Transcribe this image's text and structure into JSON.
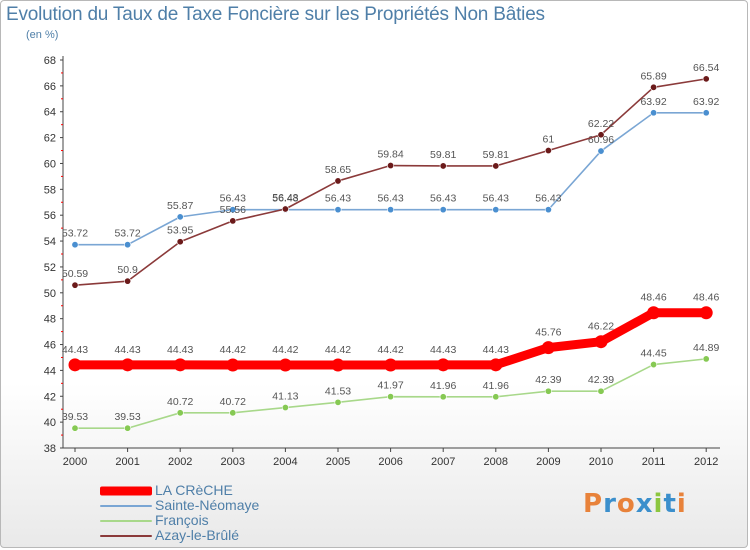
{
  "title": "Evolution du Taux de Taxe Foncière sur les Propriétés Non Bâties",
  "subtitle": "(en %)",
  "brand": {
    "letters": [
      {
        "ch": "P",
        "color": "#e8823a"
      },
      {
        "ch": "r",
        "color": "#3b8fcc"
      },
      {
        "ch": "o",
        "color": "#e8823a"
      },
      {
        "ch": "x",
        "color": "#3b8fcc"
      },
      {
        "ch": "i",
        "color": "#8cc63f"
      },
      {
        "ch": "t",
        "color": "#3b8fcc"
      },
      {
        "ch": "i",
        "color": "#e8823a"
      }
    ]
  },
  "chart_data": {
    "type": "line",
    "title": "Evolution du Taux de Taxe Foncière sur les Propriétés Non Bâties",
    "subtitle": "(en %)",
    "xlabel": "",
    "ylabel": "",
    "x": [
      "2000",
      "2001",
      "2002",
      "2003",
      "2004",
      "2005",
      "2006",
      "2007",
      "2008",
      "2009",
      "2010",
      "2011",
      "2012"
    ],
    "ylim": [
      38,
      68
    ],
    "yticks": [
      38,
      40,
      42,
      44,
      46,
      48,
      50,
      52,
      54,
      56,
      58,
      60,
      62,
      64,
      66,
      68
    ],
    "grid": false,
    "legend_position": "bottom-left",
    "series": [
      {
        "name": "LA CRèCHE",
        "color": "#ff0000",
        "emphasis": true,
        "values": [
          44.43,
          44.43,
          44.43,
          44.42,
          44.42,
          44.42,
          44.42,
          44.43,
          44.43,
          45.76,
          46.22,
          48.46,
          48.46
        ],
        "labels": [
          "44.43",
          "44.43",
          "44.43",
          "44.42",
          "44.42",
          "44.42",
          "44.42",
          "44.43",
          "44.43",
          "45.76",
          "46.22",
          "48.46",
          "48.46"
        ]
      },
      {
        "name": "Sainte-Néomaye",
        "color": "#7aa6d4",
        "marker": "#4a8fd0",
        "values": [
          53.72,
          53.72,
          55.87,
          56.43,
          56.43,
          56.43,
          56.43,
          56.43,
          56.43,
          56.43,
          60.96,
          63.92,
          63.92
        ],
        "labels": [
          "53.72",
          "53.72",
          "55.87",
          "56.43",
          "56.43",
          "56.43",
          "56.43",
          "56.43",
          "56.43",
          "56.43",
          "60.96",
          "63.92",
          "63.92"
        ]
      },
      {
        "name": "François",
        "color": "#a8d88a",
        "marker": "#86c953",
        "values": [
          39.53,
          39.53,
          40.72,
          40.72,
          41.13,
          41.53,
          41.97,
          41.96,
          41.96,
          42.39,
          42.39,
          44.45,
          44.89
        ],
        "labels": [
          "39.53",
          "39.53",
          "40.72",
          "40.72",
          "41.13",
          "41.53",
          "41.97",
          "41.96",
          "41.96",
          "42.39",
          "42.39",
          "44.45",
          "44.89"
        ]
      },
      {
        "name": "Azay-le-Brûlé",
        "color": "#8b3a3a",
        "marker": "#6b1a1a",
        "values": [
          50.59,
          50.9,
          53.95,
          55.56,
          56.48,
          58.65,
          59.84,
          59.81,
          59.81,
          61,
          62.22,
          65.89,
          66.54
        ],
        "labels": [
          "50.59",
          "50.9",
          "53.95",
          "55.56",
          "56.48",
          "58.65",
          "59.84",
          "59.81",
          "59.81",
          "61",
          "62.22",
          "65.89",
          "66.54"
        ]
      }
    ]
  }
}
